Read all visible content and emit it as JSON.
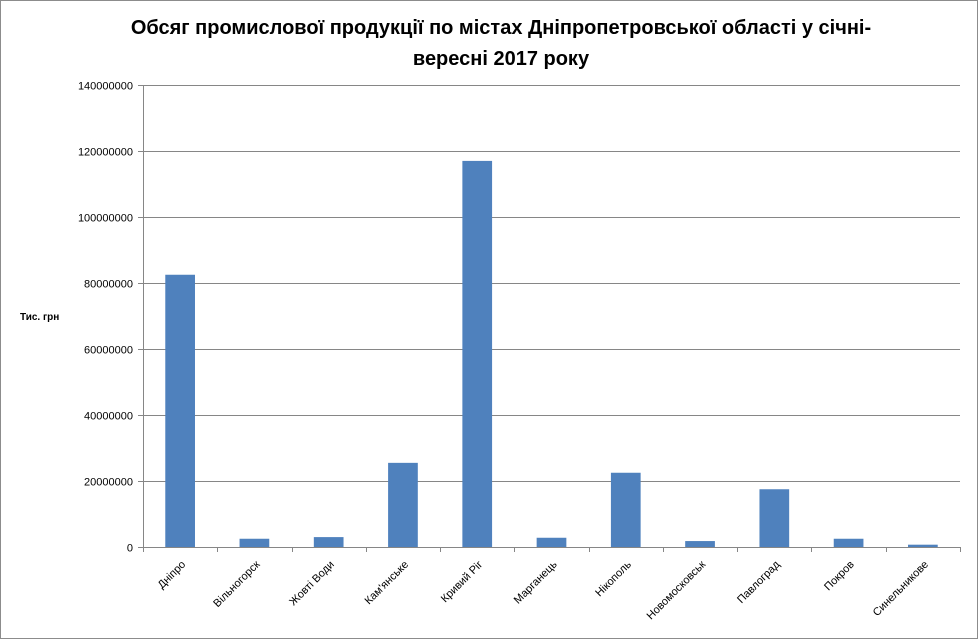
{
  "chart_data": {
    "type": "bar",
    "title_line1": "Обсяг промислової продукції по містах Дніпропетровської області у січні-",
    "title_line2": "вересні 2017 року",
    "xlabel": "",
    "ylabel": "Тис. грн",
    "ylim": [
      0,
      140000000
    ],
    "yticks": [
      "0",
      "20000000",
      "40000000",
      "60000000",
      "80000000",
      "100000000",
      "120000000",
      "140000000"
    ],
    "ytick_values": [
      0,
      20000000,
      40000000,
      60000000,
      80000000,
      100000000,
      120000000,
      140000000
    ],
    "grid": true,
    "legend": "none",
    "bar_color": "#4f81bd",
    "categories": [
      "Дніпро",
      "Вільногорск",
      "Жовті Води",
      "Кам'янське",
      "Кривий Ріг",
      "Марганець",
      "Нікополь",
      "Новомосковськ",
      "Павлоград",
      "Покров",
      "Синельникове"
    ],
    "values": [
      82500000,
      2500000,
      3000000,
      25500000,
      117000000,
      2800000,
      22500000,
      1800000,
      17500000,
      2500000,
      700000
    ]
  }
}
